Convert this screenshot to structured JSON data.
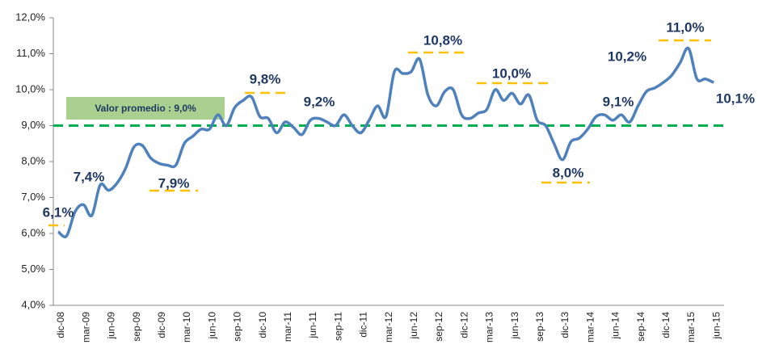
{
  "chart_data": {
    "type": "line",
    "categories": [
      "dic-08",
      null,
      null,
      "mar-09",
      null,
      null,
      "jun-09",
      null,
      null,
      "sep-09",
      null,
      null,
      "dic-09",
      null,
      null,
      "mar-10",
      null,
      null,
      "jun-10",
      null,
      null,
      "sep-10",
      null,
      null,
      "dic-10",
      null,
      null,
      "mar-11",
      null,
      null,
      "jun-11",
      null,
      null,
      "sep-11",
      null,
      null,
      "dic-11",
      null,
      null,
      "mar-12",
      null,
      null,
      "jun-12",
      null,
      null,
      "sep-12",
      null,
      null,
      "dic-12",
      null,
      null,
      "mar-13",
      null,
      null,
      "jun-13",
      null,
      null,
      "sep-13",
      null,
      null,
      "dic-13",
      null,
      null,
      "mar-14",
      null,
      null,
      "jun-14",
      null,
      null,
      "sep-14",
      null,
      null,
      "dic-14",
      null,
      null,
      "mar-15",
      null,
      null,
      "jun-15"
    ],
    "series": [
      {
        "color": "#4f81bd",
        "values": [
          6.05,
          5.93,
          6.6,
          6.8,
          6.5,
          7.35,
          7.2,
          7.4,
          7.8,
          8.4,
          8.45,
          8.1,
          7.95,
          7.9,
          7.9,
          8.5,
          8.7,
          8.9,
          8.9,
          9.3,
          9.0,
          9.5,
          9.7,
          9.8,
          9.25,
          9.2,
          8.8,
          9.1,
          8.95,
          8.75,
          9.15,
          9.2,
          9.1,
          9.0,
          9.3,
          9.0,
          8.8,
          9.15,
          9.55,
          9.25,
          10.5,
          10.45,
          10.5,
          10.85,
          9.85,
          9.55,
          9.95,
          10.0,
          9.3,
          9.2,
          9.35,
          9.45,
          10.0,
          9.7,
          9.9,
          9.6,
          9.85,
          9.15,
          9.0,
          8.5,
          8.05,
          8.55,
          8.65,
          8.9,
          9.25,
          9.3,
          9.15,
          9.3,
          9.1,
          9.55,
          9.95,
          10.05,
          10.2,
          10.4,
          10.75,
          11.15,
          10.3,
          10.3,
          10.2
        ]
      }
    ],
    "average": {
      "label": "Valor promedio : 9,0%",
      "value": 9.0,
      "color": "#00b050"
    },
    "annotations": [
      {
        "text": "6,1%",
        "value": 6.1
      },
      {
        "text": "7,4%",
        "value": 7.4
      },
      {
        "text": "7,9%",
        "value": 7.9
      },
      {
        "text": "9,8%",
        "value": 9.8
      },
      {
        "text": "9,2%",
        "value": 9.2
      },
      {
        "text": "10,8%",
        "value": 10.8
      },
      {
        "text": "10,0%",
        "value": 10.0
      },
      {
        "text": "8,0%",
        "value": 8.0
      },
      {
        "text": "9,1%",
        "value": 9.1
      },
      {
        "text": "10,2%",
        "value": 10.2
      },
      {
        "text": "11,0%",
        "value": 11.0
      },
      {
        "text": "10,1%",
        "value": 10.1
      }
    ],
    "ylim": [
      4.0,
      12.0
    ],
    "yticks": [
      {
        "value": 4.0,
        "label": "4,0%"
      },
      {
        "value": 5.0,
        "label": "5,0%"
      },
      {
        "value": 6.0,
        "label": "6,0%"
      },
      {
        "value": 7.0,
        "label": "7,0%"
      },
      {
        "value": 8.0,
        "label": "8,0%"
      },
      {
        "value": 9.0,
        "label": "9,0%"
      },
      {
        "value": 10.0,
        "label": "10,0%"
      },
      {
        "value": 11.0,
        "label": "11,0%"
      },
      {
        "value": 12.0,
        "label": "12,0%"
      }
    ],
    "grid": false
  }
}
